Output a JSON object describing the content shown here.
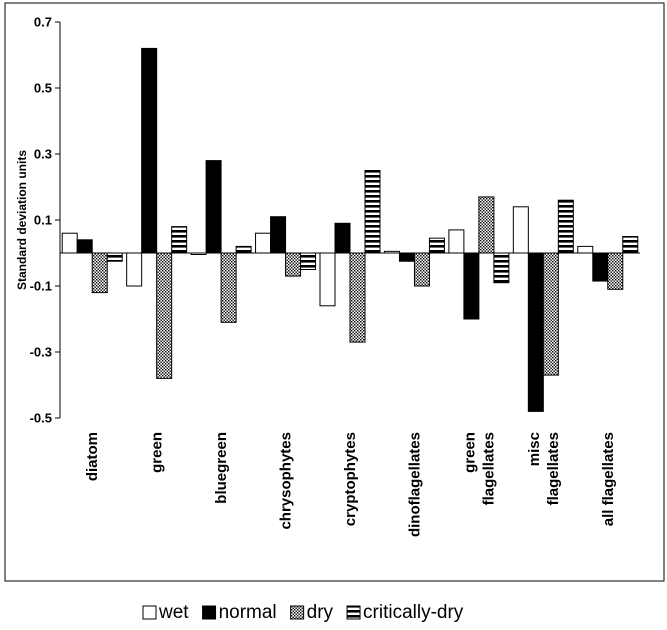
{
  "chart_data": {
    "type": "bar",
    "title": "",
    "xlabel": "",
    "ylabel": "Standard deviation units",
    "ylim": [
      -0.5,
      0.7
    ],
    "yticks": [
      "0.7",
      "0.5",
      "0.3",
      "0.1",
      "-0.1",
      "-0.3",
      "-0.5"
    ],
    "ytick_values": [
      0.7,
      0.5,
      0.3,
      0.1,
      -0.1,
      -0.3,
      -0.5
    ],
    "grid": false,
    "legend_position": "bottom",
    "categories": [
      "diatom",
      "green",
      "bluegreen",
      "chrysophytes",
      "cryptophytes",
      "dinoflagellates",
      "green flagellates",
      "misc flagellates",
      "all flagellates"
    ],
    "category_label_lines": [
      [
        "diatom"
      ],
      [
        "green"
      ],
      [
        "bluegreen"
      ],
      [
        "chrysophytes"
      ],
      [
        "cryptophytes"
      ],
      [
        "dinoflagellates"
      ],
      [
        "green",
        "flagellates"
      ],
      [
        "misc",
        "flagellates"
      ],
      [
        "all flagellates"
      ]
    ],
    "series": [
      {
        "name": "wet",
        "fill": "#ffffff",
        "pattern": "none",
        "values": [
          0.06,
          -0.1,
          0.0,
          0.06,
          -0.16,
          0.005,
          0.07,
          0.14,
          0.02
        ]
      },
      {
        "name": "normal",
        "fill": "#000000",
        "pattern": "solid",
        "values": [
          0.04,
          0.62,
          0.28,
          0.11,
          0.09,
          -0.025,
          -0.2,
          -0.48,
          -0.085
        ]
      },
      {
        "name": "dry",
        "fill": "#cccccc",
        "pattern": "dots",
        "values": [
          -0.12,
          -0.38,
          -0.21,
          -0.07,
          -0.27,
          -0.1,
          0.17,
          -0.37,
          -0.11
        ]
      },
      {
        "name": "critically-dry",
        "fill": "#ffffff",
        "pattern": "horizontal-stripes",
        "values": [
          -0.025,
          0.08,
          0.02,
          -0.05,
          0.25,
          0.045,
          -0.09,
          0.16,
          0.05
        ]
      }
    ]
  }
}
